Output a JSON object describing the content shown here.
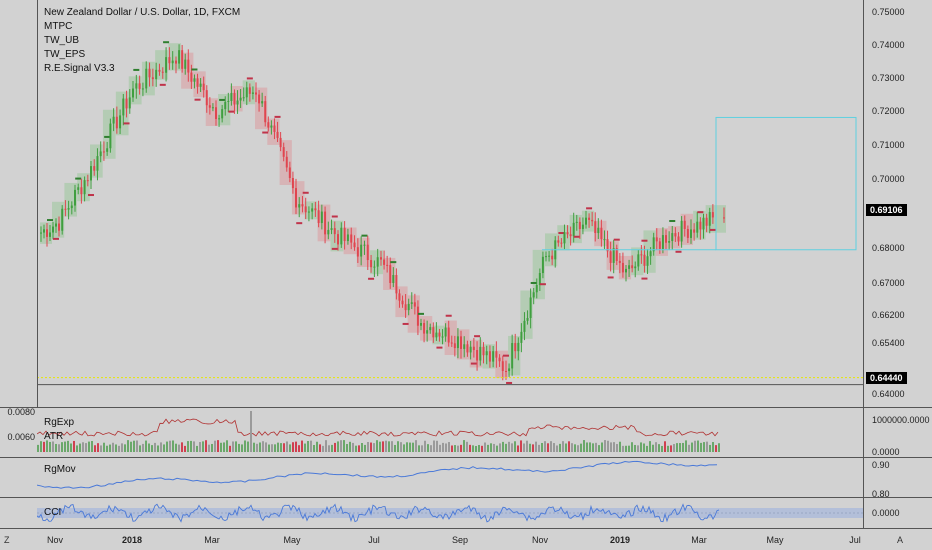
{
  "header": {
    "symbol_title": "New Zealand Dollar / U.S. Dollar, 1D, FXCM",
    "indicators": [
      "MTPC",
      "TW_UB",
      "TW_EPS",
      "R.E.Signal V3.3"
    ]
  },
  "price_scale": {
    "ticks": [
      "0.75000",
      "0.74000",
      "0.73000",
      "0.72000",
      "0.71000",
      "0.70000",
      "0.68000",
      "0.67000",
      "0.66200",
      "0.65400",
      "0.64000"
    ],
    "current_price": "0.69106",
    "line_price": "0.64440"
  },
  "pane_rgexp": {
    "labels": [
      "RgExp",
      "ATR"
    ],
    "left_ticks": [
      "0.0080",
      "0.0060"
    ],
    "right_ticks": [
      "1000000.0000",
      "0.0000"
    ]
  },
  "pane_rgmov": {
    "label": "RgMov",
    "right_ticks": [
      "0.90",
      "0.80"
    ]
  },
  "pane_cci": {
    "label": "CCI",
    "right_ticks": [
      "0.0000"
    ]
  },
  "time_axis": {
    "labels": [
      "Nov",
      "2018",
      "Mar",
      "May",
      "Jul",
      "Sep",
      "Nov",
      "2019",
      "Mar",
      "May",
      "Jul"
    ],
    "bold": [
      "2018",
      "2019"
    ]
  },
  "corners": {
    "left": "Z",
    "right": "A"
  },
  "colors": {
    "up": "#3f9f3f",
    "down": "#e0454f",
    "line_blue": "#4a79d8",
    "atr_red": "#b03030",
    "box_cyan": "#5fd0e0",
    "dotted_yellow": "#e6e600"
  },
  "chart_data": {
    "type": "candlestick",
    "title": "New Zealand Dollar / U.S. Dollar, 1D, FXCM",
    "ylim": [
      0.64,
      0.75
    ],
    "x_range": [
      "Nov 2017",
      "Jul 2019"
    ],
    "series": [
      {
        "name": "close",
        "x": [
          "2017-10",
          "2017-11",
          "2017-12",
          "2018-01",
          "2018-02",
          "2018-03",
          "2018-04",
          "2018-05",
          "2018-06",
          "2018-07",
          "2018-08",
          "2018-09",
          "2018-10",
          "2018-11",
          "2018-12",
          "2019-01",
          "2019-02",
          "2019-03"
        ],
        "values": [
          0.687,
          0.69,
          0.705,
          0.728,
          0.738,
          0.722,
          0.728,
          0.697,
          0.686,
          0.678,
          0.661,
          0.656,
          0.648,
          0.68,
          0.69,
          0.675,
          0.686,
          0.691
        ]
      }
    ],
    "current_price": 0.69106,
    "horizontal_line": 0.6444
  }
}
